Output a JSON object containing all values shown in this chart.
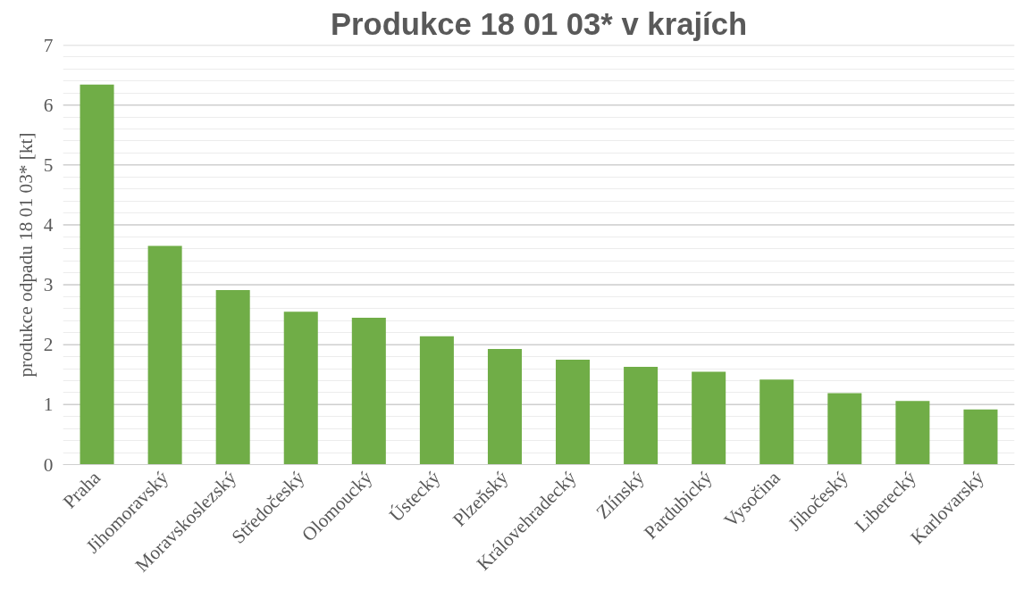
{
  "chart_data": {
    "type": "bar",
    "title": "Produkce 18 01 03* v krajích",
    "ylabel": "produkce odpadu 18 01 03* [kt]",
    "categories": [
      "Praha",
      "Jihomoravský",
      "Moravskoslezský",
      "Středočeský",
      "Olomoucký",
      "Ústecký",
      "Plzeňský",
      "Královehradecký",
      "Zlínský",
      "Pardubický",
      "Vysočina",
      "Jihočeský",
      "Liberecký",
      "Karlovarský"
    ],
    "values": [
      6.34,
      3.65,
      2.91,
      2.55,
      2.45,
      2.14,
      1.93,
      1.75,
      1.63,
      1.55,
      1.42,
      1.19,
      1.06,
      0.92
    ],
    "color": "#70ad47",
    "ylim": [
      0,
      7
    ],
    "yticks": [
      0,
      {
        "value": 0.2,
        "label": null
      },
      {
        "value": 0.4,
        "label": null
      },
      {
        "value": 0.6,
        "label": null
      },
      {
        "value": 0.8,
        "label": null
      },
      1,
      {
        "value": 1.2,
        "label": null
      },
      {
        "value": 1.4,
        "label": null
      },
      {
        "value": 1.6,
        "label": null
      },
      {
        "value": 1.8,
        "label": null
      },
      2,
      {
        "value": 2.2,
        "label": null
      },
      {
        "value": 2.4,
        "label": null
      },
      {
        "value": 2.6,
        "label": null
      },
      {
        "value": 2.8,
        "label": null
      },
      3,
      {
        "value": 3.2,
        "label": null
      },
      {
        "value": 3.4,
        "label": null
      },
      {
        "value": 3.6,
        "label": null
      },
      {
        "value": 3.8,
        "label": null
      },
      4,
      {
        "value": 4.2,
        "label": null
      },
      {
        "value": 4.4,
        "label": null
      },
      {
        "value": 4.6,
        "label": null
      },
      {
        "value": 4.8,
        "label": null
      },
      5,
      {
        "value": 5.2,
        "label": null
      },
      {
        "value": 5.4,
        "label": null
      },
      {
        "value": 5.6,
        "label": null
      },
      {
        "value": 5.8,
        "label": null
      },
      6,
      {
        "value": 6.2,
        "label": null
      },
      {
        "value": 6.4,
        "label": null
      },
      {
        "value": 6.6,
        "label": null
      },
      {
        "value": 6.8,
        "label": null
      },
      7
    ],
    "grid": "y"
  }
}
